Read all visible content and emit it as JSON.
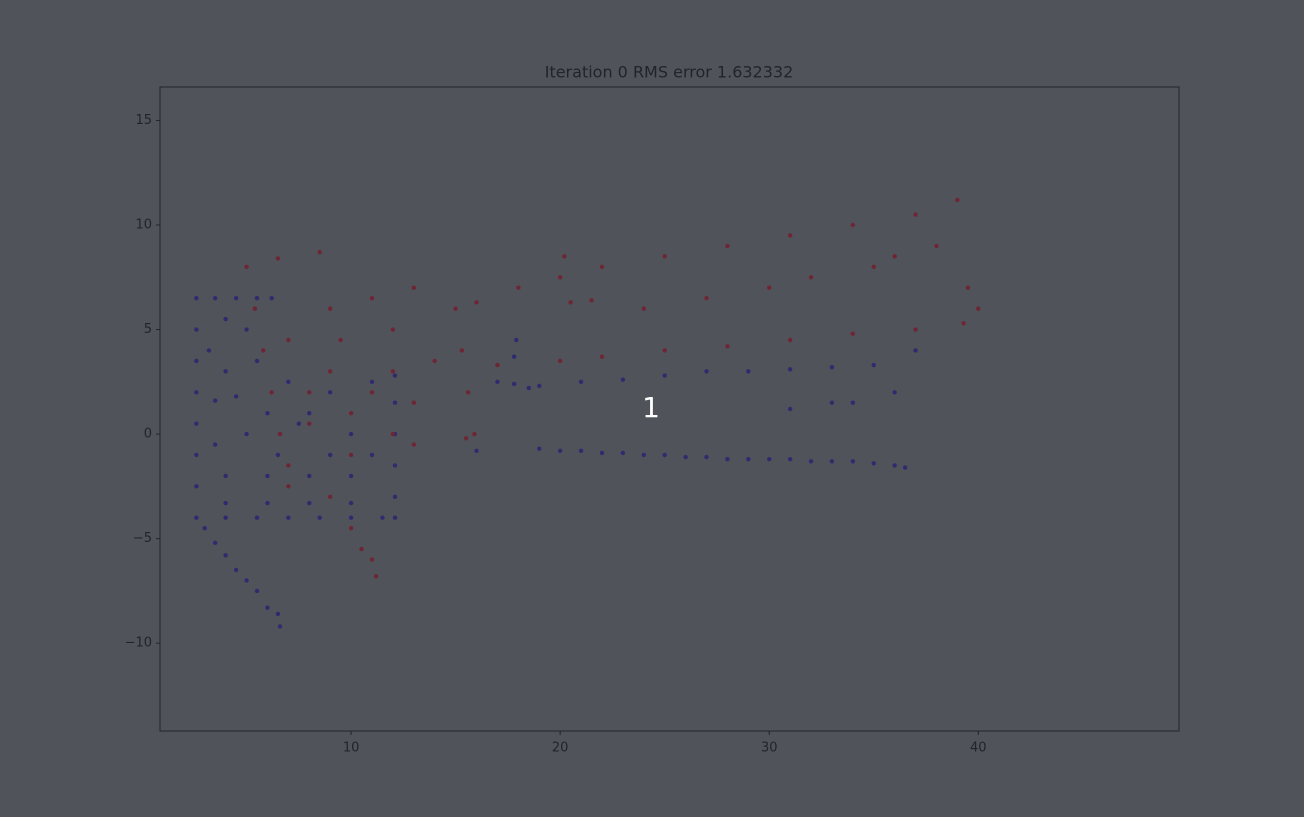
{
  "chart_data": {
    "type": "scatter",
    "title": "Iteration 0  RMS error 1.632332",
    "annotation": "1",
    "xlim": [
      0.86,
      49.6
    ],
    "ylim": [
      -14.2,
      16.6
    ],
    "xticks": [
      10,
      20,
      30,
      40
    ],
    "yticks": [
      {
        "value": -10,
        "label": "−10"
      },
      {
        "value": -5,
        "label": "−5"
      },
      0,
      5,
      10,
      15
    ],
    "series": [
      {
        "color": "#2e2c6e",
        "x": [
          2.6,
          3.5,
          4.5,
          5.5,
          6.2,
          2.6,
          2.6,
          2.6,
          2.6,
          2.6,
          2.6,
          2.6,
          4,
          5.5,
          7,
          8.5,
          10,
          11.5,
          12.1,
          12.1,
          12.1,
          12.1,
          12.1,
          12.1,
          4,
          6,
          8,
          10,
          4,
          6,
          8,
          10,
          3.2,
          4,
          3.5,
          4.5,
          5,
          3.5,
          6,
          7,
          8,
          9,
          10,
          11,
          9,
          6.5,
          11,
          7.5,
          5,
          4,
          5.5,
          3,
          3.5,
          4,
          4.5,
          5,
          5.5,
          6,
          6.5,
          6.6,
          16,
          17,
          17.8,
          17.8,
          18.5,
          17.9,
          19,
          20,
          21,
          22,
          23,
          24,
          25,
          26,
          27,
          28,
          29,
          30,
          31,
          32,
          33,
          34,
          35,
          36,
          36.5,
          37,
          36,
          34,
          31,
          33,
          19,
          21,
          23,
          25,
          27,
          29,
          31,
          33,
          35
        ],
        "values": [
          6.5,
          6.5,
          6.5,
          6.5,
          6.5,
          5,
          3.5,
          2,
          0.5,
          -1,
          -2.5,
          -4,
          -4,
          -4,
          -4,
          -4,
          -4,
          -4,
          -4,
          -3,
          -1.5,
          0,
          1.5,
          2.8,
          -2,
          -2,
          -2,
          -2,
          -3.3,
          -3.3,
          -3.3,
          -3.3,
          4,
          3,
          1.6,
          1.8,
          0,
          -0.5,
          1,
          2.5,
          1,
          2,
          0,
          2.5,
          -1,
          -1,
          -1,
          0.5,
          5,
          5.5,
          3.5,
          -4.5,
          -5.2,
          -5.8,
          -6.5,
          -7,
          -7.5,
          -8.3,
          -8.6,
          -9.2,
          -0.8,
          2.5,
          3.7,
          2.4,
          2.2,
          4.5,
          -0.7,
          -0.8,
          -0.8,
          -0.9,
          -0.9,
          -1,
          -1,
          -1.1,
          -1.1,
          -1.2,
          -1.2,
          -1.2,
          -1.2,
          -1.3,
          -1.3,
          -1.3,
          -1.4,
          -1.5,
          -1.6,
          4,
          2,
          1.5,
          1.2,
          1.5,
          2.3,
          2.5,
          2.6,
          2.8,
          3,
          3,
          3.1,
          3.2,
          3.3
        ]
      },
      {
        "color": "#6e2634",
        "x": [
          5,
          6.5,
          8.5,
          5.4,
          5.8,
          6.2,
          6.6,
          9,
          11,
          13,
          15,
          15.3,
          15.6,
          15.9,
          7,
          10,
          13,
          15.5,
          7,
          9,
          10,
          10.5,
          11,
          11.2,
          8,
          9,
          10,
          11,
          12,
          13,
          14,
          8,
          12,
          7,
          9.5,
          12,
          16,
          18,
          20,
          20.2,
          22,
          25,
          28,
          31,
          34,
          37,
          39,
          17,
          20,
          22,
          25,
          28,
          31,
          34,
          37,
          39.3,
          20.5,
          21.5,
          36,
          38,
          39.5,
          40,
          32,
          35,
          24,
          27,
          30
        ],
        "values": [
          8,
          8.4,
          8.7,
          6,
          4,
          2,
          0,
          6,
          6.5,
          7,
          6,
          4,
          2,
          0,
          -1.5,
          -1,
          -0.5,
          -0.2,
          -2.5,
          -3,
          -4.5,
          -5.5,
          -6,
          -6.8,
          2,
          3,
          1,
          2,
          3,
          1.5,
          3.5,
          0.5,
          0,
          4.5,
          4.5,
          5,
          6.3,
          7,
          7.5,
          8.5,
          8,
          8.5,
          9,
          9.5,
          10,
          10.5,
          11.2,
          3.3,
          3.5,
          3.7,
          4,
          4.2,
          4.5,
          4.8,
          5,
          5.3,
          6.3,
          6.4,
          8.5,
          9,
          7,
          6,
          7.5,
          8,
          6,
          6.5,
          7
        ]
      }
    ]
  }
}
